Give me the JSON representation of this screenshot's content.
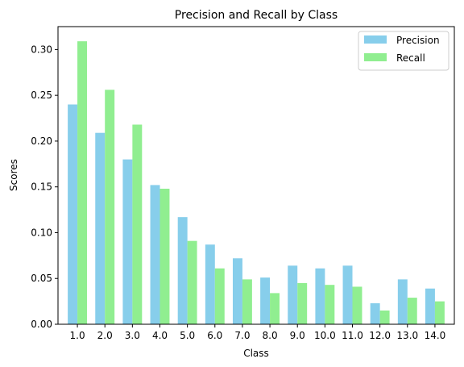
{
  "chart_data": {
    "type": "bar",
    "title": "Precision and Recall by Class",
    "xlabel": "Class",
    "ylabel": "Scores",
    "categories": [
      "1.0",
      "2.0",
      "3.0",
      "4.0",
      "5.0",
      "6.0",
      "7.0",
      "8.0",
      "9.0",
      "10.0",
      "11.0",
      "12.0",
      "13.0",
      "14.0"
    ],
    "series": [
      {
        "name": "Precision",
        "color": "#87ceeb",
        "values": [
          0.24,
          0.209,
          0.18,
          0.152,
          0.117,
          0.087,
          0.072,
          0.051,
          0.064,
          0.061,
          0.064,
          0.023,
          0.049,
          0.039
        ]
      },
      {
        "name": "Recall",
        "color": "#90ee90",
        "values": [
          0.309,
          0.256,
          0.218,
          0.148,
          0.091,
          0.061,
          0.049,
          0.034,
          0.045,
          0.043,
          0.041,
          0.015,
          0.029,
          0.025
        ]
      }
    ],
    "ylim": [
      0,
      0.325
    ],
    "yticks": [
      0.0,
      0.05,
      0.1,
      0.15,
      0.2,
      0.25,
      0.3
    ],
    "ytick_labels": [
      "0.00",
      "0.05",
      "0.10",
      "0.15",
      "0.20",
      "0.25",
      "0.30"
    ],
    "grid": false,
    "legend_position": "top-right"
  }
}
